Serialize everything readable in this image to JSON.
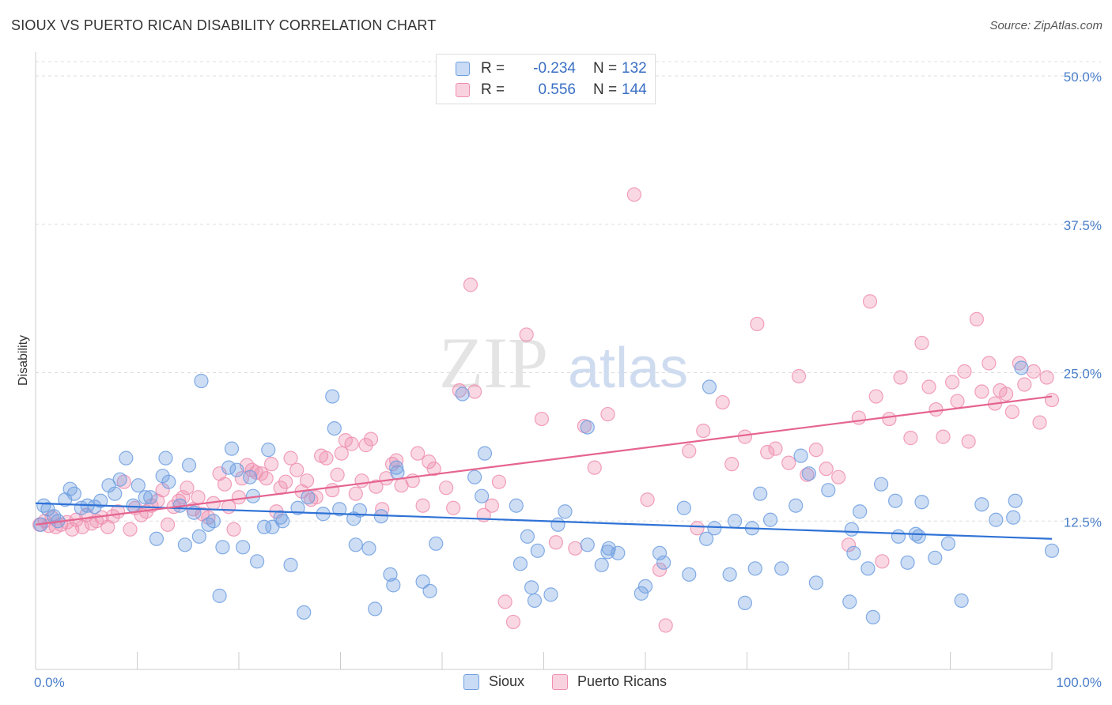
{
  "title": "SIOUX VS PUERTO RICAN DISABILITY CORRELATION CHART",
  "source": "Source: ZipAtlas.com",
  "watermark": {
    "zip": "ZIP",
    "atlas": "atlas"
  },
  "legend": {
    "rows": [
      {
        "r_label": "R =",
        "r_value": "-0.234",
        "n_label": "N =",
        "n_value": "132",
        "color": "#6f9fe0"
      },
      {
        "r_label": "R =",
        "r_value": "0.556",
        "n_label": "N =",
        "n_value": "144",
        "color": "#ef8fb0"
      }
    ]
  },
  "bottom_legend": {
    "sioux": "Sioux",
    "puerto_ricans": "Puerto Ricans"
  },
  "colors": {
    "sioux": "#6f9fe0",
    "sioux_line": "#2f72d6",
    "puerto_ricans": "#ef8fb0",
    "pr_line": "#e5648f",
    "axis_text": "#4a7fc9"
  },
  "chart_data": {
    "type": "scatter",
    "ylabel": "Disability",
    "xlim": [
      0,
      100
    ],
    "ylim": [
      0,
      50
    ],
    "x_tick_labels": [
      "0.0%",
      "100.0%"
    ],
    "y_ticks": [
      12.5,
      25.0,
      37.5,
      50.0
    ],
    "y_tick_labels": [
      "12.5%",
      "25.0%",
      "37.5%",
      "50.0%"
    ],
    "grid": true,
    "legend_placement": "top-center",
    "series": [
      {
        "name": "Sioux",
        "trend": [
          [
            0,
            14.0
          ],
          [
            100,
            11.0
          ]
        ],
        "points": [
          [
            0.5,
            12.2
          ],
          [
            0.8,
            13.8
          ],
          [
            1.2,
            13.5
          ],
          [
            1.8,
            12.9
          ],
          [
            2.2,
            12.5
          ],
          [
            2.9,
            14.3
          ],
          [
            3.4,
            15.2
          ],
          [
            3.8,
            14.8
          ],
          [
            4.5,
            13.6
          ],
          [
            5.1,
            13.8
          ],
          [
            5.8,
            13.7
          ],
          [
            6.4,
            14.2
          ],
          [
            7.2,
            15.5
          ],
          [
            7.8,
            14.8
          ],
          [
            8.3,
            16.0
          ],
          [
            8.9,
            17.8
          ],
          [
            9.6,
            13.8
          ],
          [
            10.1,
            15.5
          ],
          [
            10.8,
            14.5
          ],
          [
            11.3,
            14.5
          ],
          [
            11.9,
            11.0
          ],
          [
            12.5,
            16.3
          ],
          [
            12.8,
            17.8
          ],
          [
            13.1,
            15.8
          ],
          [
            14.2,
            13.8
          ],
          [
            14.7,
            10.5
          ],
          [
            15.1,
            17.2
          ],
          [
            15.6,
            13.2
          ],
          [
            16.1,
            11.2
          ],
          [
            16.3,
            24.3
          ],
          [
            17.0,
            12.2
          ],
          [
            17.5,
            12.5
          ],
          [
            18.1,
            6.2
          ],
          [
            18.4,
            10.3
          ],
          [
            19.0,
            17.0
          ],
          [
            19.3,
            18.6
          ],
          [
            19.8,
            16.8
          ],
          [
            20.4,
            10.3
          ],
          [
            21.1,
            16.2
          ],
          [
            21.4,
            14.6
          ],
          [
            21.8,
            9.1
          ],
          [
            22.5,
            12.0
          ],
          [
            22.9,
            18.5
          ],
          [
            23.3,
            12.0
          ],
          [
            24.1,
            12.8
          ],
          [
            24.3,
            12.5
          ],
          [
            25.1,
            8.8
          ],
          [
            25.8,
            13.6
          ],
          [
            26.4,
            4.8
          ],
          [
            26.8,
            14.5
          ],
          [
            28.3,
            13.1
          ],
          [
            29.2,
            23.0
          ],
          [
            29.4,
            20.3
          ],
          [
            29.9,
            13.5
          ],
          [
            31.3,
            12.7
          ],
          [
            31.5,
            10.5
          ],
          [
            31.9,
            13.4
          ],
          [
            32.8,
            10.2
          ],
          [
            33.4,
            5.1
          ],
          [
            34.0,
            12.9
          ],
          [
            34.9,
            8.0
          ],
          [
            35.2,
            7.1
          ],
          [
            35.5,
            17.0
          ],
          [
            35.6,
            16.6
          ],
          [
            38.1,
            7.4
          ],
          [
            38.8,
            6.6
          ],
          [
            39.4,
            10.6
          ],
          [
            42.0,
            23.2
          ],
          [
            43.2,
            16.2
          ],
          [
            43.9,
            14.6
          ],
          [
            44.2,
            18.2
          ],
          [
            47.3,
            13.8
          ],
          [
            47.7,
            8.9
          ],
          [
            48.4,
            11.2
          ],
          [
            48.8,
            6.9
          ],
          [
            49.1,
            5.8
          ],
          [
            49.4,
            10.0
          ],
          [
            50.7,
            6.3
          ],
          [
            51.4,
            12.2
          ],
          [
            52.1,
            13.3
          ],
          [
            54.3,
            20.4
          ],
          [
            54.3,
            10.5
          ],
          [
            55.7,
            8.8
          ],
          [
            56.3,
            9.9
          ],
          [
            56.4,
            10.2
          ],
          [
            57.3,
            9.8
          ],
          [
            59.6,
            6.4
          ],
          [
            60.0,
            7.0
          ],
          [
            61.4,
            9.8
          ],
          [
            61.8,
            9.0
          ],
          [
            63.8,
            13.6
          ],
          [
            64.3,
            8.0
          ],
          [
            66.0,
            11.0
          ],
          [
            66.3,
            23.8
          ],
          [
            66.8,
            11.9
          ],
          [
            68.3,
            8.0
          ],
          [
            68.8,
            12.5
          ],
          [
            69.8,
            5.6
          ],
          [
            70.5,
            11.9
          ],
          [
            70.8,
            8.5
          ],
          [
            71.3,
            14.8
          ],
          [
            72.3,
            12.6
          ],
          [
            73.4,
            8.5
          ],
          [
            74.8,
            13.8
          ],
          [
            75.3,
            18.0
          ],
          [
            76.1,
            16.5
          ],
          [
            76.8,
            7.3
          ],
          [
            78.0,
            15.1
          ],
          [
            80.1,
            5.7
          ],
          [
            80.3,
            11.8
          ],
          [
            80.5,
            9.8
          ],
          [
            81.1,
            13.3
          ],
          [
            81.9,
            8.5
          ],
          [
            82.4,
            4.4
          ],
          [
            83.2,
            15.6
          ],
          [
            84.6,
            14.2
          ],
          [
            84.9,
            11.2
          ],
          [
            85.8,
            9.0
          ],
          [
            86.6,
            11.4
          ],
          [
            86.9,
            11.2
          ],
          [
            87.2,
            14.1
          ],
          [
            88.5,
            9.4
          ],
          [
            89.8,
            10.6
          ],
          [
            91.1,
            5.8
          ],
          [
            93.1,
            13.9
          ],
          [
            94.5,
            12.6
          ],
          [
            96.2,
            12.8
          ],
          [
            97.0,
            25.4
          ],
          [
            96.4,
            14.2
          ],
          [
            100.0,
            10.0
          ]
        ]
      },
      {
        "name": "Puerto Ricans",
        "trend": [
          [
            0,
            12.2
          ],
          [
            100,
            23.0
          ]
        ],
        "points": [
          [
            0.4,
            12.2
          ],
          [
            0.9,
            12.5
          ],
          [
            1.3,
            12.1
          ],
          [
            1.6,
            12.8
          ],
          [
            2.0,
            12.0
          ],
          [
            2.5,
            12.2
          ],
          [
            3.1,
            12.4
          ],
          [
            3.6,
            11.8
          ],
          [
            4.0,
            12.6
          ],
          [
            4.6,
            12.0
          ],
          [
            5.0,
            13.0
          ],
          [
            5.5,
            12.3
          ],
          [
            6.0,
            12.5
          ],
          [
            6.5,
            12.8
          ],
          [
            7.1,
            12.0
          ],
          [
            7.6,
            12.9
          ],
          [
            8.1,
            13.3
          ],
          [
            8.7,
            15.8
          ],
          [
            9.3,
            11.8
          ],
          [
            9.8,
            13.6
          ],
          [
            10.4,
            13.0
          ],
          [
            10.9,
            13.3
          ],
          [
            11.4,
            13.8
          ],
          [
            12.0,
            14.2
          ],
          [
            12.5,
            15.1
          ],
          [
            13.0,
            12.2
          ],
          [
            13.6,
            13.7
          ],
          [
            14.1,
            14.2
          ],
          [
            14.5,
            14.5
          ],
          [
            14.9,
            15.3
          ],
          [
            15.5,
            13.5
          ],
          [
            16.0,
            14.5
          ],
          [
            16.4,
            13.1
          ],
          [
            17.0,
            12.8
          ],
          [
            17.5,
            14.0
          ],
          [
            18.1,
            16.5
          ],
          [
            18.6,
            15.6
          ],
          [
            19.0,
            13.7
          ],
          [
            19.5,
            11.8
          ],
          [
            20.0,
            14.5
          ],
          [
            20.3,
            16.1
          ],
          [
            20.8,
            17.2
          ],
          [
            21.3,
            16.8
          ],
          [
            21.7,
            16.6
          ],
          [
            22.2,
            16.5
          ],
          [
            22.7,
            16.1
          ],
          [
            23.2,
            17.3
          ],
          [
            23.7,
            13.3
          ],
          [
            24.1,
            15.3
          ],
          [
            24.6,
            15.8
          ],
          [
            25.1,
            17.8
          ],
          [
            25.7,
            16.8
          ],
          [
            26.2,
            15.0
          ],
          [
            26.7,
            15.9
          ],
          [
            27.1,
            14.3
          ],
          [
            27.6,
            14.5
          ],
          [
            28.1,
            18.0
          ],
          [
            28.6,
            17.8
          ],
          [
            29.2,
            15.1
          ],
          [
            29.7,
            16.4
          ],
          [
            30.1,
            18.2
          ],
          [
            30.5,
            19.3
          ],
          [
            31.1,
            19.0
          ],
          [
            31.5,
            14.8
          ],
          [
            32.1,
            15.9
          ],
          [
            32.5,
            18.9
          ],
          [
            33.0,
            19.4
          ],
          [
            33.5,
            15.4
          ],
          [
            34.1,
            13.5
          ],
          [
            34.5,
            16.1
          ],
          [
            35.1,
            17.3
          ],
          [
            35.5,
            17.6
          ],
          [
            36.0,
            15.5
          ],
          [
            37.1,
            15.9
          ],
          [
            37.6,
            18.2
          ],
          [
            38.1,
            13.8
          ],
          [
            38.7,
            17.5
          ],
          [
            39.2,
            16.9
          ],
          [
            40.4,
            15.3
          ],
          [
            41.1,
            13.6
          ],
          [
            41.7,
            23.5
          ],
          [
            42.8,
            32.4
          ],
          [
            43.2,
            23.4
          ],
          [
            44.1,
            13.0
          ],
          [
            44.9,
            13.8
          ],
          [
            45.6,
            15.8
          ],
          [
            46.2,
            5.7
          ],
          [
            47.0,
            4.0
          ],
          [
            48.3,
            28.2
          ],
          [
            49.8,
            21.1
          ],
          [
            51.2,
            10.7
          ],
          [
            53.1,
            10.2
          ],
          [
            54.0,
            20.5
          ],
          [
            55.0,
            17.0
          ],
          [
            56.3,
            21.5
          ],
          [
            58.9,
            40.0
          ],
          [
            60.2,
            14.3
          ],
          [
            61.4,
            8.4
          ],
          [
            62.0,
            3.7
          ],
          [
            64.3,
            18.4
          ],
          [
            65.1,
            11.9
          ],
          [
            65.7,
            20.1
          ],
          [
            67.6,
            22.5
          ],
          [
            68.5,
            17.3
          ],
          [
            69.8,
            19.6
          ],
          [
            71.0,
            29.1
          ],
          [
            72.0,
            18.3
          ],
          [
            72.8,
            18.6
          ],
          [
            74.1,
            17.4
          ],
          [
            75.1,
            24.7
          ],
          [
            75.9,
            16.4
          ],
          [
            76.8,
            18.5
          ],
          [
            77.8,
            16.9
          ],
          [
            79.0,
            16.2
          ],
          [
            80.0,
            10.5
          ],
          [
            81.0,
            21.2
          ],
          [
            82.1,
            31.0
          ],
          [
            82.7,
            23.0
          ],
          [
            83.3,
            9.1
          ],
          [
            84.0,
            21.1
          ],
          [
            85.1,
            24.6
          ],
          [
            86.1,
            19.5
          ],
          [
            87.2,
            27.5
          ],
          [
            87.9,
            23.8
          ],
          [
            88.6,
            21.9
          ],
          [
            89.3,
            19.6
          ],
          [
            90.2,
            24.2
          ],
          [
            90.7,
            22.6
          ],
          [
            91.4,
            25.1
          ],
          [
            91.8,
            19.2
          ],
          [
            92.6,
            29.5
          ],
          [
            93.1,
            23.4
          ],
          [
            93.8,
            25.8
          ],
          [
            94.4,
            22.4
          ],
          [
            94.9,
            23.5
          ],
          [
            95.5,
            23.2
          ],
          [
            96.1,
            21.7
          ],
          [
            96.8,
            25.8
          ],
          [
            97.3,
            24.0
          ],
          [
            98.2,
            25.1
          ],
          [
            98.8,
            20.8
          ],
          [
            99.5,
            24.6
          ],
          [
            100.0,
            22.7
          ]
        ]
      }
    ]
  }
}
